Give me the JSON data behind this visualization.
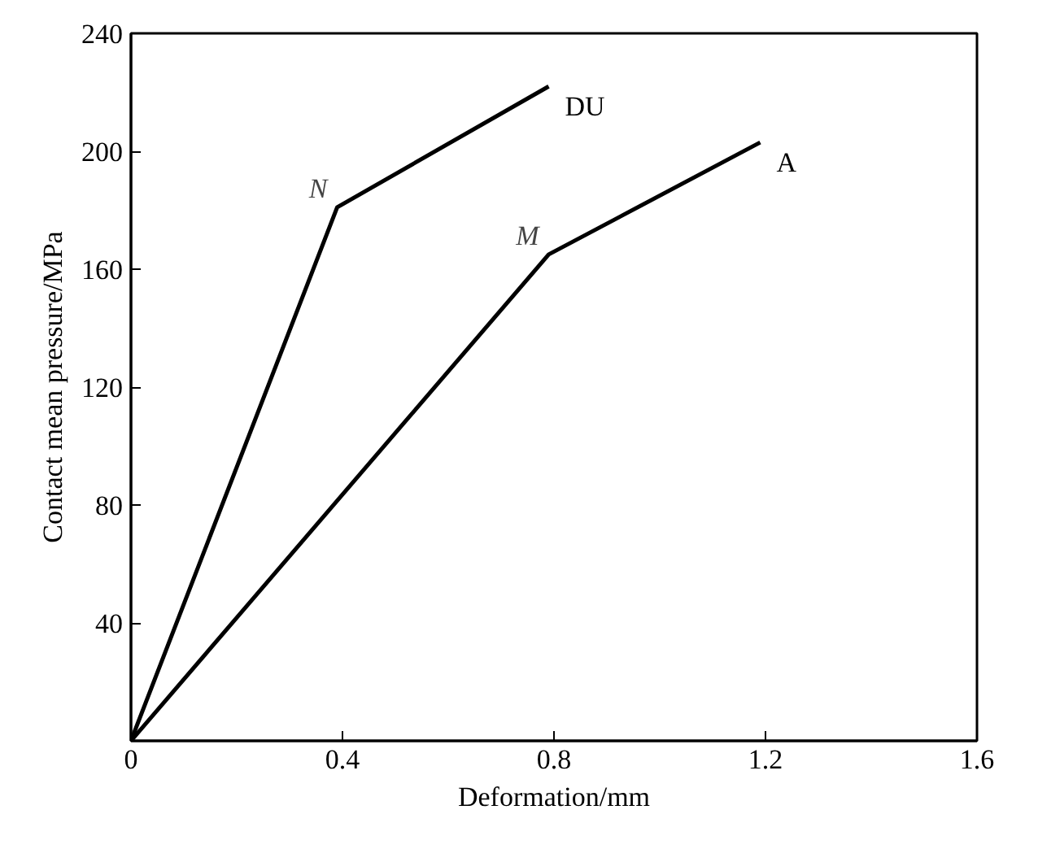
{
  "chart_data": {
    "type": "line",
    "xlabel": "Deformation/mm",
    "ylabel": "Contact mean pressure/MPa",
    "series": [
      {
        "name": "DU",
        "color": "#000000",
        "x": [
          0,
          0.39,
          0.79
        ],
        "values": [
          0,
          181,
          222
        ]
      },
      {
        "name": "A",
        "color": "#000000",
        "x": [
          0,
          0.79,
          1.19
        ],
        "values": [
          0,
          165,
          203
        ]
      }
    ],
    "annotations": [
      {
        "text": "N",
        "x": 0.39,
        "y": 181
      },
      {
        "text": "M",
        "x": 0.79,
        "y": 165
      }
    ],
    "xlim": [
      0,
      1.6
    ],
    "ylim": [
      0,
      240
    ],
    "xticks": [
      0,
      0.4,
      0.8,
      1.2,
      1.6
    ],
    "yticks": [
      {
        "value": 0,
        "label": null
      },
      40,
      80,
      120,
      160,
      200,
      240
    ],
    "grid": false,
    "marker": "none",
    "line_style": "solid"
  }
}
